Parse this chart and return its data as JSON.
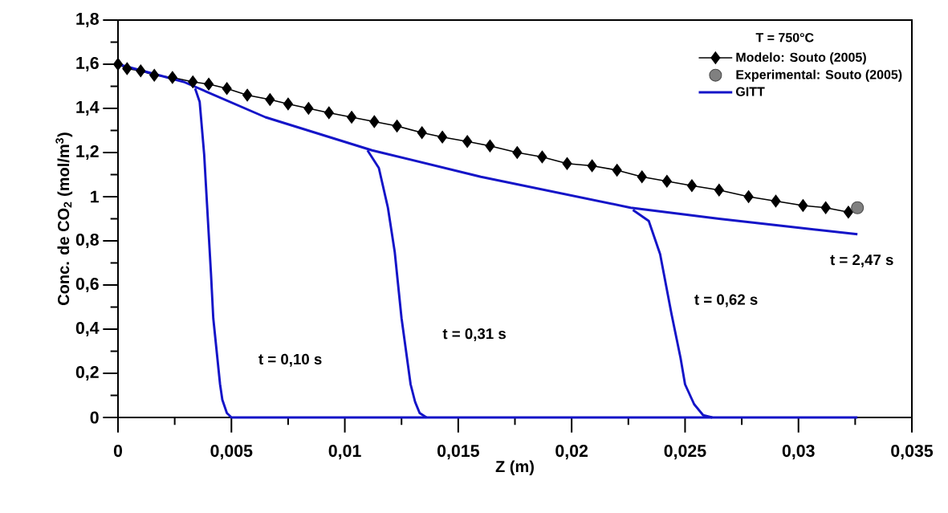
{
  "chart_data": {
    "type": "line",
    "xlabel": "Z (m)",
    "ylabel": "Conc. de CO$_{2}$ (mol/m$^{3}$)",
    "legend_title": "T = 750°C",
    "xlim": [
      0,
      0.035
    ],
    "ylim": [
      0,
      1.8
    ],
    "xticks": [
      0,
      {
        "value": 0.005,
        "label": "0,005"
      },
      {
        "value": 0.01,
        "label": "0,01"
      },
      {
        "value": 0.015,
        "label": "0,015"
      },
      {
        "value": 0.02,
        "label": "0,02"
      },
      {
        "value": 0.025,
        "label": "0,025"
      },
      {
        "value": 0.03,
        "label": "0,03"
      },
      {
        "value": 0.035,
        "label": "0,035"
      }
    ],
    "yticks": [
      0,
      {
        "value": 0.2,
        "label": "0,2"
      },
      {
        "value": 0.4,
        "label": "0,4"
      },
      {
        "value": 0.6,
        "label": "0,6"
      },
      {
        "value": 0.8,
        "label": "0,8"
      },
      1,
      {
        "value": 1.2,
        "label": "1,2"
      },
      {
        "value": 1.4,
        "label": "1,4"
      },
      {
        "value": 1.6,
        "label": "1,6"
      },
      {
        "value": 1.8,
        "label": "1,8"
      }
    ],
    "legend": "top right",
    "series": [
      {
        "name": "Modelo: Souto (2005)",
        "marker": "diamond",
        "color": "#000000",
        "x": [
          0,
          0.0004,
          0.001,
          0.0016,
          0.0024,
          0.0033,
          0.004,
          0.0048,
          0.0057,
          0.0067,
          0.0075,
          0.0084,
          0.0093,
          0.0103,
          0.0113,
          0.0123,
          0.0134,
          0.0143,
          0.0154,
          0.0164,
          0.0176,
          0.0187,
          0.0198,
          0.0209,
          0.022,
          0.0231,
          0.0242,
          0.0253,
          0.0265,
          0.0278,
          0.029,
          0.0302,
          0.0312,
          0.0322
        ],
        "values": [
          1.6,
          1.58,
          1.57,
          1.55,
          1.54,
          1.52,
          1.51,
          1.49,
          1.46,
          1.44,
          1.42,
          1.4,
          1.38,
          1.36,
          1.34,
          1.32,
          1.29,
          1.27,
          1.25,
          1.23,
          1.2,
          1.18,
          1.15,
          1.14,
          1.12,
          1.09,
          1.07,
          1.05,
          1.03,
          1.0,
          0.98,
          0.96,
          0.95,
          0.93
        ]
      },
      {
        "name": "Experimental: Souto (2005)",
        "type": "scatter",
        "marker": "circle",
        "color": "#808080",
        "x": [
          0.0326
        ],
        "values": [
          0.95
        ]
      },
      {
        "name": "GITT",
        "color": "#1414c8",
        "x": [
          0,
          0.0029,
          0.0065,
          0.0112,
          0.016,
          0.0226,
          0.0265,
          0.0291,
          0.0326
        ],
        "values": [
          1.6,
          1.52,
          1.36,
          1.21,
          1.09,
          0.95,
          0.9,
          0.87,
          0.83
        ]
      },
      {
        "color": "#1414c8",
        "x": [
          0.0034,
          0.0036,
          0.0038,
          0.004,
          0.0041,
          0.0042,
          0.0045,
          0.0046,
          0.0048,
          0.005,
          0.0326
        ],
        "values": [
          1.49,
          1.43,
          1.19,
          0.83,
          0.65,
          0.45,
          0.15,
          0.08,
          0.02,
          0,
          0
        ]
      },
      {
        "color": "#1414c8",
        "x": [
          0.011,
          0.0115,
          0.0119,
          0.0122,
          0.0125,
          0.0129,
          0.0131,
          0.0133,
          0.0136
        ],
        "values": [
          1.21,
          1.13,
          0.95,
          0.75,
          0.45,
          0.15,
          0.07,
          0.02,
          0
        ]
      },
      {
        "color": "#1414c8",
        "x": [
          0.0227,
          0.0234,
          0.0239,
          0.0244,
          0.0248,
          0.025,
          0.0254,
          0.0258,
          0.0262
        ],
        "values": [
          0.94,
          0.89,
          0.74,
          0.47,
          0.27,
          0.15,
          0.06,
          0.01,
          0
        ]
      }
    ],
    "annotations": [
      "t = 0,10 s",
      "t = 0,31 s",
      "t = 0,62 s",
      "t = 2,47 s"
    ]
  }
}
